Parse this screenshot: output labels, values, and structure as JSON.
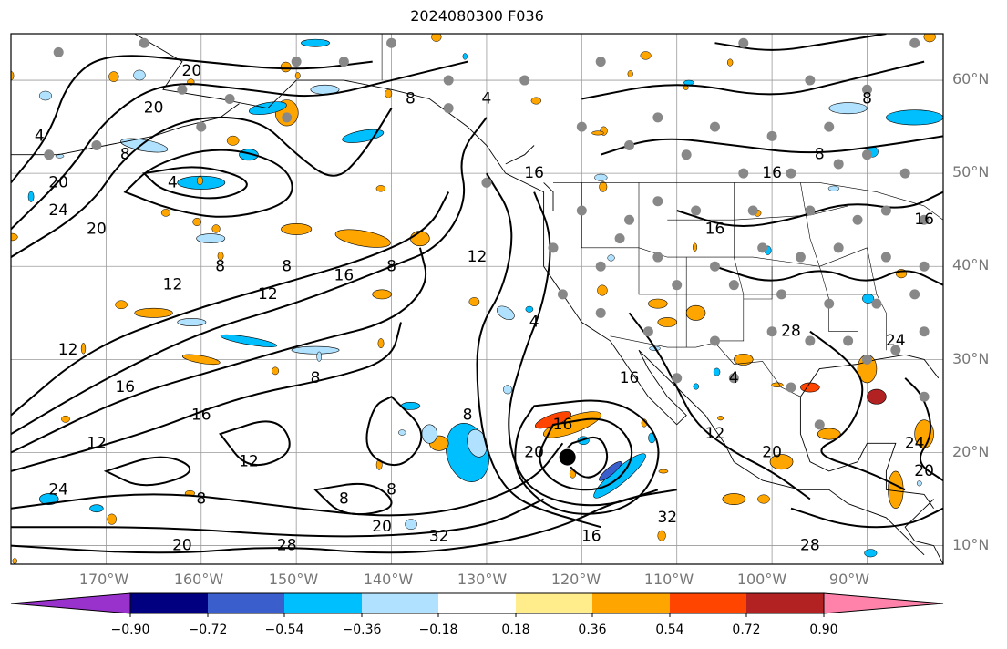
{
  "title": "2024080300 F036",
  "map": {
    "projection": "equirectangular",
    "lon_range": [
      -180,
      -82
    ],
    "lat_range": [
      8,
      65
    ],
    "latitude_labels": [
      "60°N",
      "50°N",
      "40°N",
      "30°N",
      "20°N",
      "10°N"
    ],
    "longitude_labels": [
      "170°W",
      "160°W",
      "150°W",
      "140°W",
      "130°W",
      "120°W",
      "110°W",
      "100°W",
      "90°W"
    ],
    "storm_marker": {
      "lon": -121.5,
      "lat": 19.5,
      "color": "#000000"
    },
    "station_color": "#888888",
    "station_count": 90,
    "contour_labels": [
      "4",
      "8",
      "12",
      "16",
      "20",
      "24",
      "28",
      "32"
    ],
    "contour_color": "#000000",
    "coastline_color": "#000000"
  },
  "colorbar": {
    "ticks": [
      "−0.90",
      "−0.72",
      "−0.54",
      "−0.36",
      "−0.18",
      "0.18",
      "0.36",
      "0.54",
      "0.72",
      "0.90"
    ],
    "colors": [
      "#9932cc",
      "#000080",
      "#3a5fcd",
      "#00bfff",
      "#b0e2ff",
      "#ffffff",
      "#ffec8b",
      "#ffa500",
      "#ff4500",
      "#b22222",
      "#ff82ab"
    ],
    "extend": "both"
  }
}
